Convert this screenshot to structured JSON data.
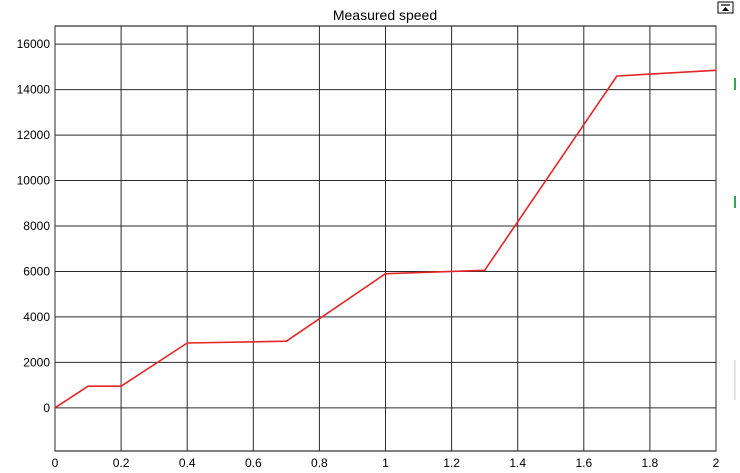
{
  "window": {
    "dock_icon": "dock-arrow-icon",
    "accent_colors": {
      "series": "#e32626",
      "edge_marks": "#2fa84f"
    }
  },
  "chart_data": {
    "type": "line",
    "title": "Measured speed",
    "xlabel": "",
    "ylabel": "",
    "xlim": [
      0,
      2
    ],
    "ylim": [
      -1900,
      16800
    ],
    "x_ticks": [
      0,
      0.2,
      0.4,
      0.6,
      0.8,
      1,
      1.2,
      1.4,
      1.6,
      1.8,
      2
    ],
    "x_tick_labels": [
      "0",
      "0.2",
      "0.4",
      "0.6",
      "0.8",
      "1",
      "1.2",
      "1.4",
      "1.6",
      "1.8",
      "2"
    ],
    "y_ticks": [
      0,
      2000,
      4000,
      6000,
      8000,
      10000,
      12000,
      14000,
      16000
    ],
    "y_tick_labels": [
      "0",
      "2000",
      "4000",
      "6000",
      "8000",
      "10000",
      "12000",
      "14000",
      "16000"
    ],
    "grid": true,
    "series": [
      {
        "color": "#e32626",
        "x": [
          0,
          0.1,
          0.2,
          0.4,
          0.7,
          1.0,
          1.3,
          1.7,
          2.0
        ],
        "y": [
          0,
          950,
          950,
          2850,
          2930,
          5900,
          6050,
          14600,
          14850
        ]
      }
    ]
  }
}
